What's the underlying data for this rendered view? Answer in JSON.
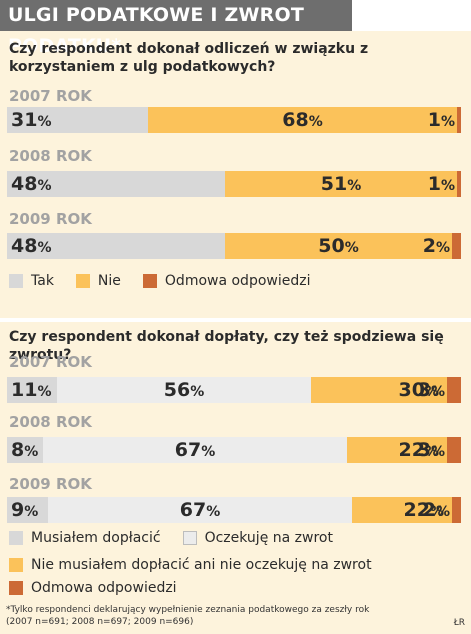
{
  "title": "ULGI PODATKOWE I ZWROT PODATKU*",
  "colors": {
    "tak": "#d8d8d8",
    "nie": "#fbc25a",
    "odmowa": "#cc6a35",
    "musialem": "#d8d8d8",
    "oczekuje": "#ececec"
  },
  "section1": {
    "question": "Czy respondent dokonał odliczeń w związku z korzystaniem z ulg podatkowych?",
    "legend": [
      "Tak",
      "Nie",
      "Odmowa odpowiedzi"
    ]
  },
  "section2": {
    "question": "Czy respondent dokonał dopłaty, czy też spodziewa się zwrotu?",
    "legend": [
      "Musiałem dopłacić",
      "Oczekuję na zwrot",
      "Nie musiałem dopłacić ani nie oczekuję na zwrot",
      "Odmowa odpowiedzi"
    ]
  },
  "footnote": [
    "*Tylko respondenci deklarujący wypełnienie zeznania podatkowego za zeszły rok",
    "(2007 n=691; 2008 n=697; 2009 n=696)"
  ],
  "credit": "ŁR",
  "chart_data": [
    {
      "type": "bar",
      "stacked": true,
      "orientation": "horizontal",
      "title": "Czy respondent dokonał odliczeń w związku z korzystaniem z ulg podatkowych?",
      "categories": [
        "2007 ROK",
        "2008 ROK",
        "2009 ROK"
      ],
      "series": [
        {
          "name": "Tak",
          "values": [
            31,
            48,
            48
          ]
        },
        {
          "name": "Nie",
          "values": [
            68,
            51,
            50
          ]
        },
        {
          "name": "Odmowa odpowiedzi",
          "values": [
            1,
            1,
            2
          ]
        }
      ],
      "unit": "%"
    },
    {
      "type": "bar",
      "stacked": true,
      "orientation": "horizontal",
      "title": "Czy respondent dokonał dopłaty, czy też spodziewa się zwrotu?",
      "categories": [
        "2007 ROK",
        "2008 ROK",
        "2009 ROK"
      ],
      "series": [
        {
          "name": "Musiałem dopłacić",
          "values": [
            11,
            8,
            9
          ]
        },
        {
          "name": "Oczekuję na zwrot",
          "values": [
            56,
            67,
            67
          ]
        },
        {
          "name": "Nie musiałem dopłacić ani nie oczekuję na zwrot",
          "values": [
            30,
            22,
            22
          ]
        },
        {
          "name": "Odmowa odpowiedzi",
          "values": [
            3,
            3,
            2
          ]
        }
      ],
      "unit": "%"
    }
  ]
}
